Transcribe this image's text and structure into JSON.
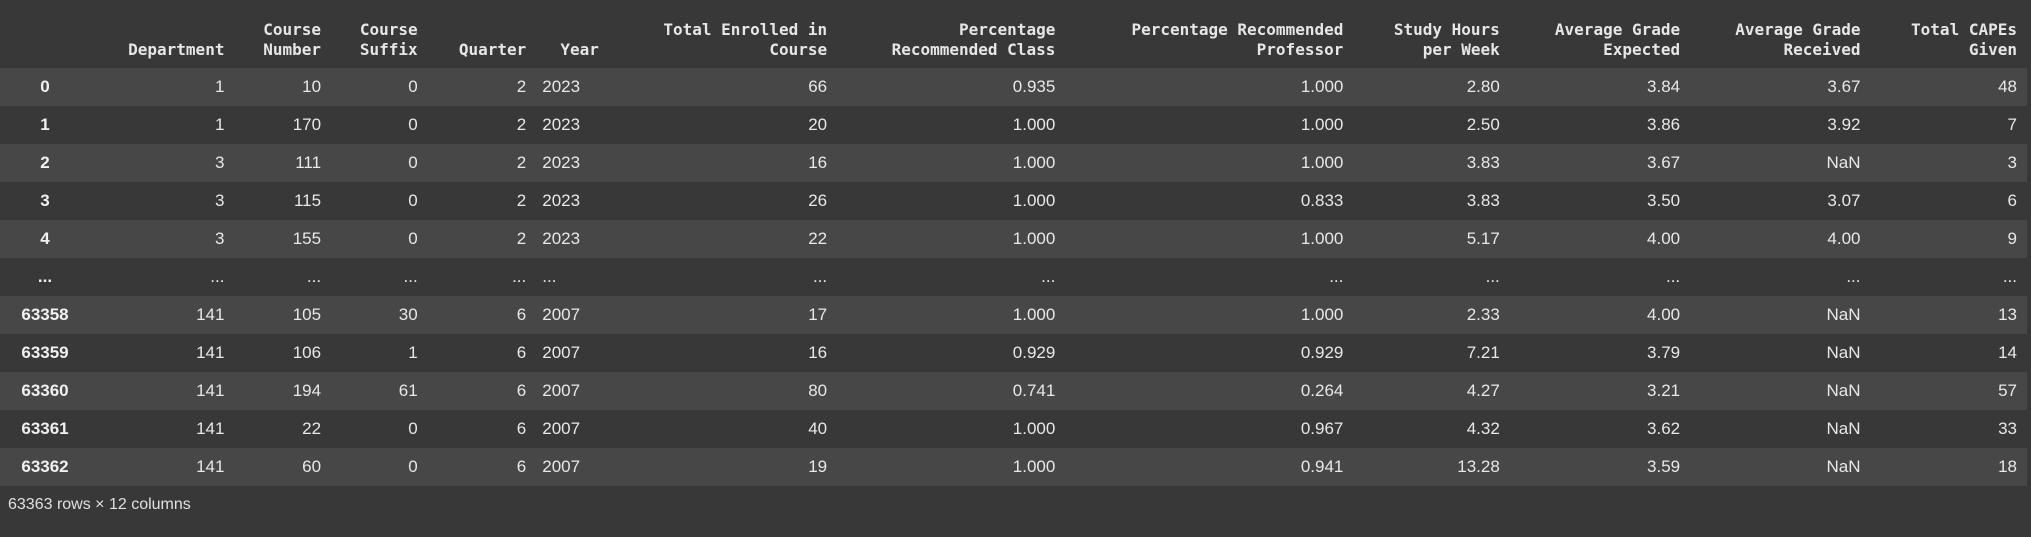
{
  "table": {
    "columns": [
      "Department",
      "Course\nNumber",
      "Course\nSuffix",
      "Quarter",
      "Year",
      "Total Enrolled in\nCourse",
      "Percentage\nRecommended Class",
      "Percentage Recommended\nProfessor",
      "Study Hours\nper Week",
      "Average Grade\nExpected",
      "Average Grade\nReceived",
      "Total CAPEs\nGiven"
    ],
    "rows": [
      {
        "index": "0",
        "cells": [
          "1",
          "10",
          "0",
          "2",
          "2023",
          "66",
          "0.935",
          "1.000",
          "2.80",
          "3.84",
          "3.67",
          "48"
        ]
      },
      {
        "index": "1",
        "cells": [
          "1",
          "170",
          "0",
          "2",
          "2023",
          "20",
          "1.000",
          "1.000",
          "2.50",
          "3.86",
          "3.92",
          "7"
        ]
      },
      {
        "index": "2",
        "cells": [
          "3",
          "111",
          "0",
          "2",
          "2023",
          "16",
          "1.000",
          "1.000",
          "3.83",
          "3.67",
          "NaN",
          "3"
        ]
      },
      {
        "index": "3",
        "cells": [
          "3",
          "115",
          "0",
          "2",
          "2023",
          "26",
          "1.000",
          "0.833",
          "3.83",
          "3.50",
          "3.07",
          "6"
        ]
      },
      {
        "index": "4",
        "cells": [
          "3",
          "155",
          "0",
          "2",
          "2023",
          "22",
          "1.000",
          "1.000",
          "5.17",
          "4.00",
          "4.00",
          "9"
        ]
      },
      {
        "index": "...",
        "cells": [
          "...",
          "...",
          "...",
          "...",
          "...",
          "...",
          "...",
          "...",
          "...",
          "...",
          "...",
          "..."
        ]
      },
      {
        "index": "63358",
        "cells": [
          "141",
          "105",
          "30",
          "6",
          "2007",
          "17",
          "1.000",
          "1.000",
          "2.33",
          "4.00",
          "NaN",
          "13"
        ]
      },
      {
        "index": "63359",
        "cells": [
          "141",
          "106",
          "1",
          "6",
          "2007",
          "16",
          "0.929",
          "0.929",
          "7.21",
          "3.79",
          "NaN",
          "14"
        ]
      },
      {
        "index": "63360",
        "cells": [
          "141",
          "194",
          "61",
          "6",
          "2007",
          "80",
          "0.741",
          "0.264",
          "4.27",
          "3.21",
          "NaN",
          "57"
        ]
      },
      {
        "index": "63361",
        "cells": [
          "141",
          "22",
          "0",
          "6",
          "2007",
          "40",
          "1.000",
          "0.967",
          "4.32",
          "3.62",
          "NaN",
          "33"
        ]
      },
      {
        "index": "63362",
        "cells": [
          "141",
          "60",
          "0",
          "6",
          "2007",
          "19",
          "1.000",
          "0.941",
          "13.28",
          "3.59",
          "NaN",
          "18"
        ]
      }
    ]
  },
  "footer": "63363 rows × 12 columns"
}
